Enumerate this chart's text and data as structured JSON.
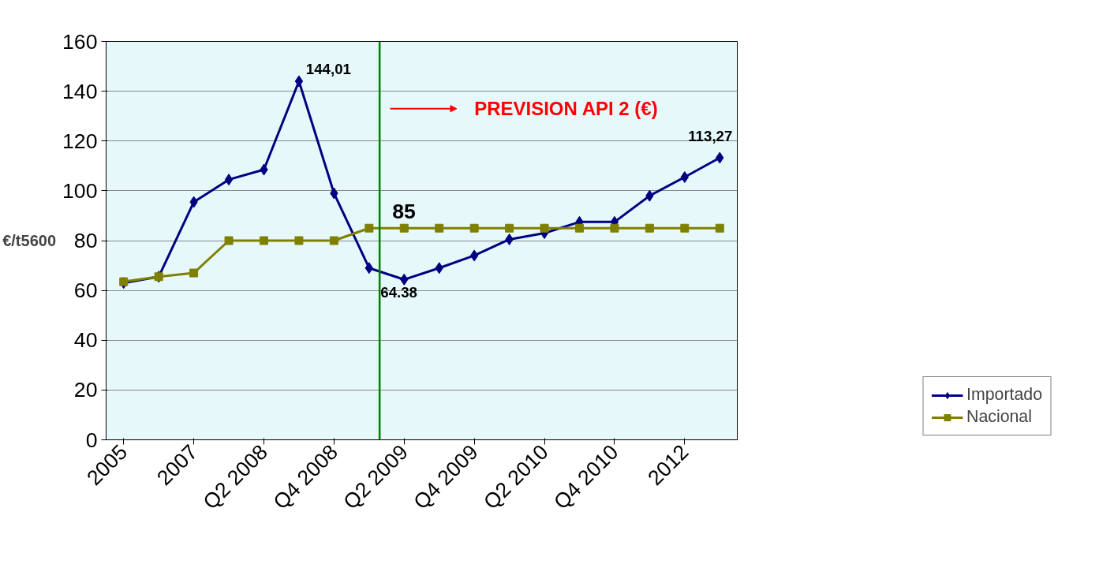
{
  "chart_data": {
    "type": "line",
    "ylabel": "€/t5600",
    "categories": [
      "2005",
      null,
      "2007",
      null,
      "Q2 2008",
      null,
      "Q4 2008",
      null,
      "Q2 2009",
      null,
      "Q4 2009",
      null,
      "Q2 2010",
      null,
      "Q4 2010",
      null,
      "2012",
      null
    ],
    "series": [
      {
        "name": "Importado",
        "color": "#000080",
        "marker": "diamond",
        "values": [
          63,
          65.5,
          95.5,
          104.5,
          108.5,
          144.01,
          99,
          69,
          64.38,
          69,
          74,
          80.5,
          83,
          87.5,
          87.5,
          98,
          105.5,
          113.27
        ]
      },
      {
        "name": "Nacional",
        "color": "#808000",
        "marker": "square",
        "values": [
          63.5,
          65.5,
          67,
          80,
          80,
          80,
          80,
          85,
          85,
          85,
          85,
          85,
          85,
          85,
          85,
          85,
          85,
          85
        ]
      }
    ],
    "ylim": [
      0,
      160
    ],
    "yticks": [
      0,
      20,
      40,
      60,
      80,
      100,
      120,
      140,
      160
    ],
    "grid": "y",
    "legend": "bottom right",
    "annotations": [
      "144,01",
      "113,27",
      {
        "text": "64.38",
        "x": "Q2 2009",
        "y": 64.38
      },
      {
        "text": "85",
        "x": "Q2 2009",
        "y": 85
      },
      "PREVISION API 2 (€)"
    ]
  }
}
